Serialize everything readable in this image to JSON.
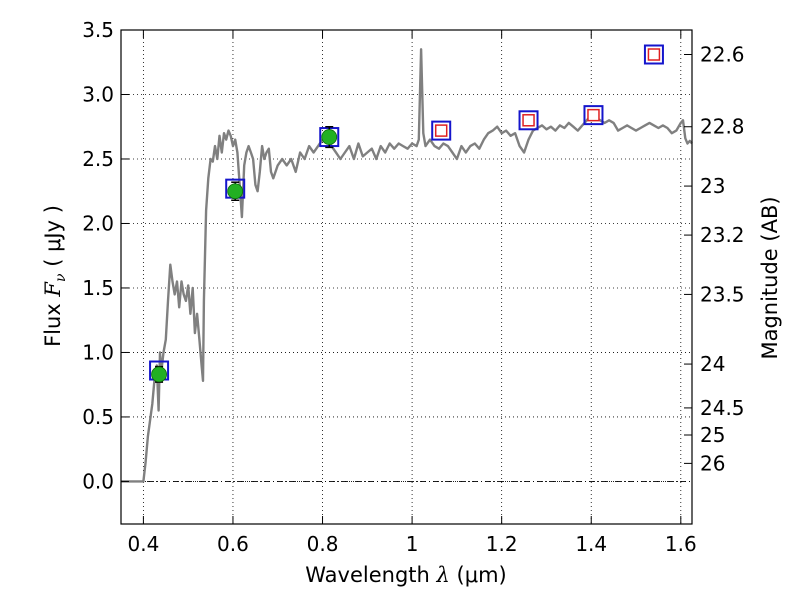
{
  "chart_data": {
    "type": "line",
    "xlabel_text": "Wavelength",
    "xlabel_symbol": "λ",
    "xlabel_unit": "(μm)",
    "ylabel_text": "Flux",
    "ylabel_symbol": "F",
    "ylabel_subscript": "ν",
    "ylabel_unit": "( μJy )",
    "y2label": "Magnitude (AB)",
    "xlim": [
      0.35,
      1.625
    ],
    "ylim": [
      -0.33,
      3.5
    ],
    "grid": true,
    "x_ticks": [
      {
        "value": 0.4,
        "label": "0.4"
      },
      {
        "value": 0.6,
        "label": "0.6"
      },
      {
        "value": 0.8,
        "label": "0.8"
      },
      {
        "value": 1.0,
        "label": "1"
      },
      {
        "value": 1.2,
        "label": "1.2"
      },
      {
        "value": 1.4,
        "label": "1.4"
      },
      {
        "value": 1.6,
        "label": "1.6"
      }
    ],
    "y_ticks": [
      {
        "value": 0.0,
        "label": "0.0"
      },
      {
        "value": 0.5,
        "label": "0.5"
      },
      {
        "value": 1.0,
        "label": "1.0"
      },
      {
        "value": 1.5,
        "label": "1.5"
      },
      {
        "value": 2.0,
        "label": "2.0"
      },
      {
        "value": 2.5,
        "label": "2.5"
      },
      {
        "value": 3.0,
        "label": "3.0"
      },
      {
        "value": 3.5,
        "label": "3.5"
      }
    ],
    "y2_ticks": [
      {
        "flux": 3.31,
        "label": "22.6"
      },
      {
        "flux": 2.75,
        "label": "22.8"
      },
      {
        "flux": 2.29,
        "label": "23"
      },
      {
        "flux": 1.91,
        "label": "23.2"
      },
      {
        "flux": 1.45,
        "label": "23.5"
      },
      {
        "flux": 0.91,
        "label": "24"
      },
      {
        "flux": 0.57,
        "label": "24.5"
      },
      {
        "flux": 0.36,
        "label": "25"
      },
      {
        "flux": 0.14,
        "label": "26"
      }
    ],
    "series": [
      {
        "type": "line",
        "color": "#808080",
        "points": [
          [
            0.35,
            0.0
          ],
          [
            0.4,
            0.0
          ],
          [
            0.405,
            0.15
          ],
          [
            0.41,
            0.35
          ],
          [
            0.42,
            0.6
          ],
          [
            0.425,
            0.8
          ],
          [
            0.43,
            0.9
          ],
          [
            0.434,
            0.55
          ],
          [
            0.437,
            1.0
          ],
          [
            0.44,
            0.85
          ],
          [
            0.445,
            1.0
          ],
          [
            0.45,
            1.1
          ],
          [
            0.455,
            1.4
          ],
          [
            0.46,
            1.68
          ],
          [
            0.465,
            1.55
          ],
          [
            0.47,
            1.45
          ],
          [
            0.475,
            1.55
          ],
          [
            0.48,
            1.35
          ],
          [
            0.485,
            1.55
          ],
          [
            0.49,
            1.45
          ],
          [
            0.495,
            1.4
          ],
          [
            0.5,
            1.52
          ],
          [
            0.505,
            1.3
          ],
          [
            0.51,
            1.5
          ],
          [
            0.515,
            1.15
          ],
          [
            0.52,
            1.3
          ],
          [
            0.525,
            1.1
          ],
          [
            0.53,
            0.9
          ],
          [
            0.533,
            0.78
          ],
          [
            0.535,
            1.4
          ],
          [
            0.54,
            2.1
          ],
          [
            0.545,
            2.35
          ],
          [
            0.55,
            2.5
          ],
          [
            0.555,
            2.48
          ],
          [
            0.56,
            2.6
          ],
          [
            0.565,
            2.5
          ],
          [
            0.57,
            2.68
          ],
          [
            0.575,
            2.55
          ],
          [
            0.58,
            2.7
          ],
          [
            0.585,
            2.65
          ],
          [
            0.59,
            2.72
          ],
          [
            0.595,
            2.68
          ],
          [
            0.6,
            2.6
          ],
          [
            0.605,
            2.65
          ],
          [
            0.61,
            2.55
          ],
          [
            0.615,
            2.3
          ],
          [
            0.62,
            2.05
          ],
          [
            0.625,
            2.45
          ],
          [
            0.63,
            2.55
          ],
          [
            0.635,
            2.6
          ],
          [
            0.64,
            2.55
          ],
          [
            0.645,
            2.5
          ],
          [
            0.65,
            2.3
          ],
          [
            0.655,
            2.25
          ],
          [
            0.66,
            2.4
          ],
          [
            0.665,
            2.6
          ],
          [
            0.67,
            2.5
          ],
          [
            0.675,
            2.55
          ],
          [
            0.68,
            2.58
          ],
          [
            0.685,
            2.4
          ],
          [
            0.69,
            2.35
          ],
          [
            0.7,
            2.45
          ],
          [
            0.71,
            2.5
          ],
          [
            0.72,
            2.45
          ],
          [
            0.73,
            2.5
          ],
          [
            0.74,
            2.4
          ],
          [
            0.75,
            2.55
          ],
          [
            0.76,
            2.5
          ],
          [
            0.77,
            2.6
          ],
          [
            0.78,
            2.55
          ],
          [
            0.79,
            2.6
          ],
          [
            0.8,
            2.65
          ],
          [
            0.81,
            2.68
          ],
          [
            0.82,
            2.6
          ],
          [
            0.83,
            2.55
          ],
          [
            0.84,
            2.5
          ],
          [
            0.85,
            2.55
          ],
          [
            0.86,
            2.6
          ],
          [
            0.87,
            2.5
          ],
          [
            0.88,
            2.62
          ],
          [
            0.89,
            2.52
          ],
          [
            0.9,
            2.55
          ],
          [
            0.91,
            2.58
          ],
          [
            0.92,
            2.5
          ],
          [
            0.93,
            2.6
          ],
          [
            0.94,
            2.55
          ],
          [
            0.95,
            2.62
          ],
          [
            0.96,
            2.58
          ],
          [
            0.97,
            2.62
          ],
          [
            0.98,
            2.6
          ],
          [
            0.99,
            2.58
          ],
          [
            1.0,
            2.62
          ],
          [
            1.01,
            2.6
          ],
          [
            1.015,
            2.65
          ],
          [
            1.02,
            3.35
          ],
          [
            1.025,
            2.7
          ],
          [
            1.03,
            2.6
          ],
          [
            1.04,
            2.65
          ],
          [
            1.05,
            2.6
          ],
          [
            1.06,
            2.58
          ],
          [
            1.07,
            2.62
          ],
          [
            1.08,
            2.6
          ],
          [
            1.09,
            2.55
          ],
          [
            1.1,
            2.5
          ],
          [
            1.11,
            2.6
          ],
          [
            1.12,
            2.55
          ],
          [
            1.13,
            2.6
          ],
          [
            1.14,
            2.62
          ],
          [
            1.15,
            2.58
          ],
          [
            1.16,
            2.65
          ],
          [
            1.17,
            2.7
          ],
          [
            1.18,
            2.72
          ],
          [
            1.19,
            2.75
          ],
          [
            1.2,
            2.7
          ],
          [
            1.21,
            2.72
          ],
          [
            1.22,
            2.68
          ],
          [
            1.23,
            2.7
          ],
          [
            1.24,
            2.6
          ],
          [
            1.25,
            2.55
          ],
          [
            1.26,
            2.65
          ],
          [
            1.27,
            2.72
          ],
          [
            1.28,
            2.74
          ],
          [
            1.29,
            2.76
          ],
          [
            1.3,
            2.73
          ],
          [
            1.31,
            2.75
          ],
          [
            1.32,
            2.72
          ],
          [
            1.33,
            2.76
          ],
          [
            1.34,
            2.74
          ],
          [
            1.35,
            2.78
          ],
          [
            1.36,
            2.75
          ],
          [
            1.37,
            2.72
          ],
          [
            1.38,
            2.76
          ],
          [
            1.39,
            2.8
          ],
          [
            1.4,
            2.84
          ],
          [
            1.41,
            2.82
          ],
          [
            1.42,
            2.8
          ],
          [
            1.43,
            2.78
          ],
          [
            1.44,
            2.8
          ],
          [
            1.45,
            2.78
          ],
          [
            1.46,
            2.72
          ],
          [
            1.47,
            2.74
          ],
          [
            1.48,
            2.76
          ],
          [
            1.49,
            2.74
          ],
          [
            1.5,
            2.72
          ],
          [
            1.51,
            2.74
          ],
          [
            1.52,
            2.76
          ],
          [
            1.53,
            2.78
          ],
          [
            1.54,
            2.76
          ],
          [
            1.55,
            2.74
          ],
          [
            1.56,
            2.76
          ],
          [
            1.57,
            2.74
          ],
          [
            1.58,
            2.7
          ],
          [
            1.59,
            2.72
          ],
          [
            1.6,
            2.78
          ],
          [
            1.605,
            2.8
          ],
          [
            1.61,
            2.66
          ],
          [
            1.615,
            2.62
          ],
          [
            1.62,
            2.64
          ],
          [
            1.625,
            2.62
          ]
        ]
      },
      {
        "type": "scatter",
        "marker": "square-open",
        "edgecolor": "#1515cc",
        "points": [
          [
            0.435,
            0.86
          ],
          [
            0.605,
            2.27
          ],
          [
            0.815,
            2.67
          ]
        ]
      },
      {
        "type": "scatter",
        "marker": "square-open",
        "edgecolor": "#1515cc",
        "inner_edgecolor": "#e02020",
        "points": [
          [
            1.065,
            2.72
          ],
          [
            1.26,
            2.8
          ],
          [
            1.405,
            2.84
          ],
          [
            1.54,
            3.31
          ]
        ]
      },
      {
        "type": "scatter",
        "marker": "circle",
        "color": "#22b022",
        "points": [
          [
            0.435,
            0.83
          ],
          [
            0.605,
            2.25
          ],
          [
            0.815,
            2.67
          ]
        ],
        "yerr": [
          0.06,
          0.07,
          0.08
        ]
      }
    ]
  }
}
